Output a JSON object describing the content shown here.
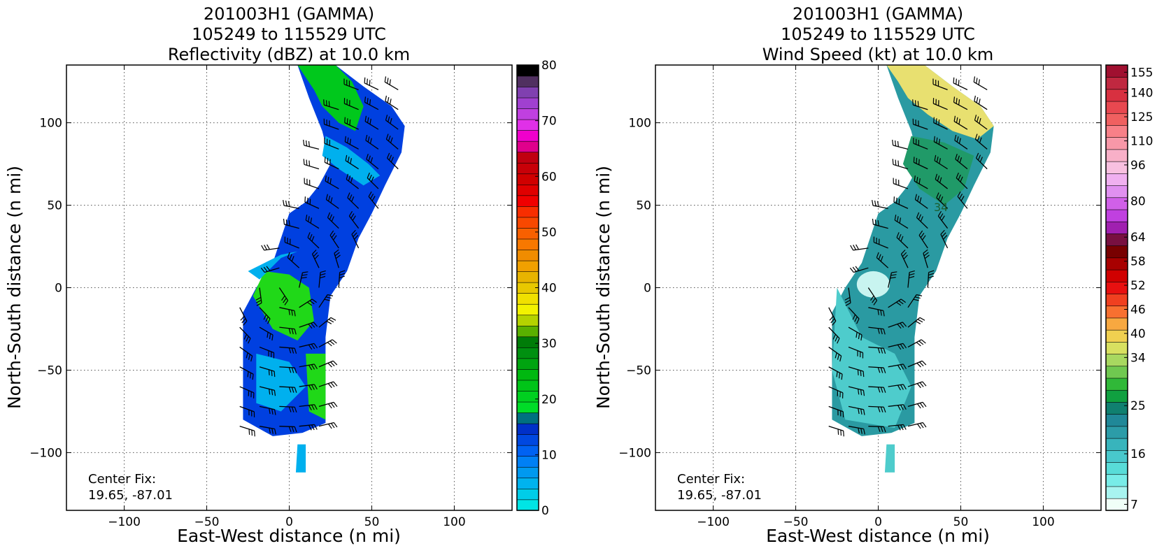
{
  "chart_data": [
    {
      "type": "heatmap",
      "title_lines": [
        "201003H1 (GAMMA)",
        "105249 to 115529 UTC",
        "Reflectivity (dBZ) at 10.0 km"
      ],
      "xlabel": "East-West distance (n mi)",
      "ylabel": "North-South distance (n mi)",
      "xlim": [
        -135,
        135
      ],
      "ylim": [
        -135,
        135
      ],
      "xticks": [
        -100,
        -50,
        0,
        50,
        100
      ],
      "yticks": [
        -100,
        -50,
        0,
        50,
        100
      ],
      "xtick_labels": [
        "−100",
        "−50",
        "0",
        "50",
        "100"
      ],
      "ytick_labels": [
        "−100",
        "−50",
        "0",
        "50",
        "100"
      ],
      "grid": true,
      "annotation_lines": [
        "Center Fix:",
        "19.65, -87.01"
      ],
      "colorbar": {
        "min": 0,
        "max": 80,
        "ticks": [
          0,
          10,
          20,
          30,
          40,
          50,
          60,
          70,
          80
        ],
        "colors": [
          "#00e5e5",
          "#00cde8",
          "#00b3ee",
          "#0099f0",
          "#0080f5",
          "#0062f2",
          "#0048e0",
          "#0030c8",
          "#007080",
          "#00dc28",
          "#00d020",
          "#00c418",
          "#00b810",
          "#00a410",
          "#009010",
          "#007c08",
          "#5ab000",
          "#b4d200",
          "#f2f200",
          "#f0e000",
          "#e8c800",
          "#e8b400",
          "#f0a000",
          "#f08c00",
          "#f87800",
          "#f86000",
          "#f84800",
          "#f82e00",
          "#f00000",
          "#e00000",
          "#d00000",
          "#c80008",
          "#c00010",
          "#e0008c",
          "#f000cc",
          "#e030e8",
          "#c040e0",
          "#a040d0",
          "#8040b0",
          "#503060",
          "#000000"
        ]
      },
      "echo_color_zones": {
        "upper_arc": "#00c81c",
        "band": "#0040e0",
        "light": "#00b0ee",
        "core": "#20d818",
        "tail": "#00e0e8"
      }
    },
    {
      "type": "heatmap",
      "title_lines": [
        "201003H1 (GAMMA)",
        "105249 to 115529 UTC",
        "Wind Speed (kt) at 10.0 km"
      ],
      "xlabel": "East-West distance (n mi)",
      "ylabel": "North-South distance (n mi)",
      "xlim": [
        -135,
        135
      ],
      "ylim": [
        -135,
        135
      ],
      "xticks": [
        -100,
        -50,
        0,
        50,
        100
      ],
      "yticks": [
        -100,
        -50,
        0,
        50,
        100
      ],
      "xtick_labels": [
        "−100",
        "−50",
        "0",
        "50",
        "100"
      ],
      "ytick_labels": [
        "−100",
        "−50",
        "0",
        "50",
        "100"
      ],
      "grid": true,
      "annotation_lines": [
        "Center Fix:",
        "19.65, -87.01"
      ],
      "colorbar": {
        "ticks": [
          7,
          16,
          25,
          34,
          40,
          46,
          52,
          58,
          64,
          80,
          96,
          110,
          125,
          140,
          155
        ],
        "colors": [
          "#f0fff8",
          "#a8f4f0",
          "#78ece8",
          "#58dcd8",
          "#48c8cc",
          "#38b4bc",
          "#2c9ca8",
          "#208898",
          "#108070",
          "#10a040",
          "#30b838",
          "#70c850",
          "#a8d860",
          "#d8e060",
          "#f0d050",
          "#f8a840",
          "#f87030",
          "#f04020",
          "#e81010",
          "#d00000",
          "#a80000",
          "#780000",
          "#781040",
          "#a020b0",
          "#c040e0",
          "#d060e8",
          "#e090f0",
          "#f0b0f0",
          "#f8c0e0",
          "#f8b0c8",
          "#f898a8",
          "#f88088",
          "#f06060",
          "#e84850",
          "#d83040",
          "#c02840",
          "#a01030"
        ]
      },
      "wind_color_zones": {
        "upper_arc": "#e8e070",
        "mid": "#209a68",
        "band": "#2a9aa2",
        "light": "#4ecccc",
        "eye": "#c8f4f0"
      },
      "streak_label": "34"
    }
  ]
}
